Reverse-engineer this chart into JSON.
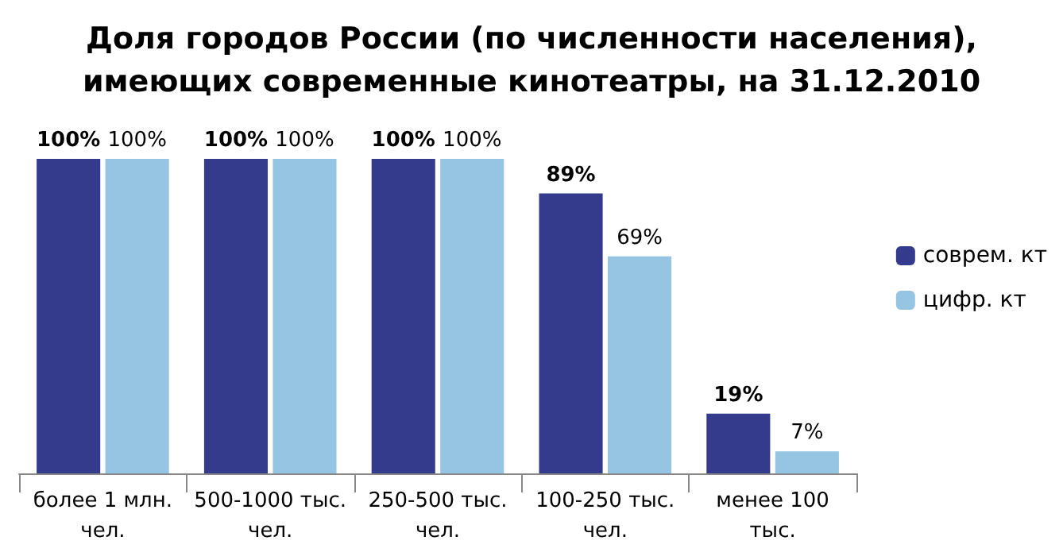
{
  "chart_data": {
    "type": "bar",
    "title": "Доля городов России (по численности населения),\nимеющих современные кинотеатры, на 31.12.2010",
    "categories": [
      "более 1 млн.\nчел.",
      "500-1000 тыс.\nчел.",
      "250-500 тыс.\nчел.",
      "100-250 тыс.\nчел.",
      "менее 100\nтыс."
    ],
    "series": [
      {
        "name": "соврем. кт",
        "color": "#343a8c",
        "values": [
          100,
          100,
          100,
          89,
          19
        ],
        "value_labels": [
          "100%",
          "100%",
          "100%",
          "89%",
          "19%"
        ]
      },
      {
        "name": "цифр. кт",
        "color": "#95c5e3",
        "values": [
          100,
          100,
          100,
          69,
          7
        ],
        "value_labels": [
          "100%",
          "100%",
          "100%",
          "69%",
          "7%"
        ]
      }
    ],
    "legend": "right"
  }
}
